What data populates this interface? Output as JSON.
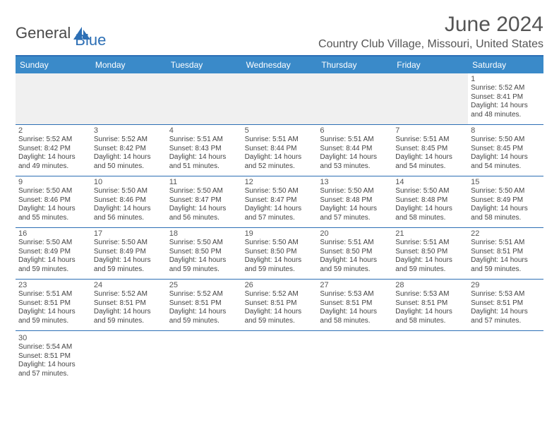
{
  "brand": {
    "general": "General",
    "blue": "Blue"
  },
  "title": "June 2024",
  "location": "Country Club Village, Missouri, United States",
  "colors": {
    "header_bar": "#3a8ac9",
    "rule": "#2d6fb5",
    "blank_bg": "#f0f0f0",
    "text": "#444444"
  },
  "weekdays": [
    "Sunday",
    "Monday",
    "Tuesday",
    "Wednesday",
    "Thursday",
    "Friday",
    "Saturday"
  ],
  "weeks": [
    [
      null,
      null,
      null,
      null,
      null,
      null,
      {
        "n": "1",
        "sr": "Sunrise: 5:52 AM",
        "ss": "Sunset: 8:41 PM",
        "d1": "Daylight: 14 hours",
        "d2": "and 48 minutes."
      }
    ],
    [
      {
        "n": "2",
        "sr": "Sunrise: 5:52 AM",
        "ss": "Sunset: 8:42 PM",
        "d1": "Daylight: 14 hours",
        "d2": "and 49 minutes."
      },
      {
        "n": "3",
        "sr": "Sunrise: 5:52 AM",
        "ss": "Sunset: 8:42 PM",
        "d1": "Daylight: 14 hours",
        "d2": "and 50 minutes."
      },
      {
        "n": "4",
        "sr": "Sunrise: 5:51 AM",
        "ss": "Sunset: 8:43 PM",
        "d1": "Daylight: 14 hours",
        "d2": "and 51 minutes."
      },
      {
        "n": "5",
        "sr": "Sunrise: 5:51 AM",
        "ss": "Sunset: 8:44 PM",
        "d1": "Daylight: 14 hours",
        "d2": "and 52 minutes."
      },
      {
        "n": "6",
        "sr": "Sunrise: 5:51 AM",
        "ss": "Sunset: 8:44 PM",
        "d1": "Daylight: 14 hours",
        "d2": "and 53 minutes."
      },
      {
        "n": "7",
        "sr": "Sunrise: 5:51 AM",
        "ss": "Sunset: 8:45 PM",
        "d1": "Daylight: 14 hours",
        "d2": "and 54 minutes."
      },
      {
        "n": "8",
        "sr": "Sunrise: 5:50 AM",
        "ss": "Sunset: 8:45 PM",
        "d1": "Daylight: 14 hours",
        "d2": "and 54 minutes."
      }
    ],
    [
      {
        "n": "9",
        "sr": "Sunrise: 5:50 AM",
        "ss": "Sunset: 8:46 PM",
        "d1": "Daylight: 14 hours",
        "d2": "and 55 minutes."
      },
      {
        "n": "10",
        "sr": "Sunrise: 5:50 AM",
        "ss": "Sunset: 8:46 PM",
        "d1": "Daylight: 14 hours",
        "d2": "and 56 minutes."
      },
      {
        "n": "11",
        "sr": "Sunrise: 5:50 AM",
        "ss": "Sunset: 8:47 PM",
        "d1": "Daylight: 14 hours",
        "d2": "and 56 minutes."
      },
      {
        "n": "12",
        "sr": "Sunrise: 5:50 AM",
        "ss": "Sunset: 8:47 PM",
        "d1": "Daylight: 14 hours",
        "d2": "and 57 minutes."
      },
      {
        "n": "13",
        "sr": "Sunrise: 5:50 AM",
        "ss": "Sunset: 8:48 PM",
        "d1": "Daylight: 14 hours",
        "d2": "and 57 minutes."
      },
      {
        "n": "14",
        "sr": "Sunrise: 5:50 AM",
        "ss": "Sunset: 8:48 PM",
        "d1": "Daylight: 14 hours",
        "d2": "and 58 minutes."
      },
      {
        "n": "15",
        "sr": "Sunrise: 5:50 AM",
        "ss": "Sunset: 8:49 PM",
        "d1": "Daylight: 14 hours",
        "d2": "and 58 minutes."
      }
    ],
    [
      {
        "n": "16",
        "sr": "Sunrise: 5:50 AM",
        "ss": "Sunset: 8:49 PM",
        "d1": "Daylight: 14 hours",
        "d2": "and 59 minutes."
      },
      {
        "n": "17",
        "sr": "Sunrise: 5:50 AM",
        "ss": "Sunset: 8:49 PM",
        "d1": "Daylight: 14 hours",
        "d2": "and 59 minutes."
      },
      {
        "n": "18",
        "sr": "Sunrise: 5:50 AM",
        "ss": "Sunset: 8:50 PM",
        "d1": "Daylight: 14 hours",
        "d2": "and 59 minutes."
      },
      {
        "n": "19",
        "sr": "Sunrise: 5:50 AM",
        "ss": "Sunset: 8:50 PM",
        "d1": "Daylight: 14 hours",
        "d2": "and 59 minutes."
      },
      {
        "n": "20",
        "sr": "Sunrise: 5:51 AM",
        "ss": "Sunset: 8:50 PM",
        "d1": "Daylight: 14 hours",
        "d2": "and 59 minutes."
      },
      {
        "n": "21",
        "sr": "Sunrise: 5:51 AM",
        "ss": "Sunset: 8:50 PM",
        "d1": "Daylight: 14 hours",
        "d2": "and 59 minutes."
      },
      {
        "n": "22",
        "sr": "Sunrise: 5:51 AM",
        "ss": "Sunset: 8:51 PM",
        "d1": "Daylight: 14 hours",
        "d2": "and 59 minutes."
      }
    ],
    [
      {
        "n": "23",
        "sr": "Sunrise: 5:51 AM",
        "ss": "Sunset: 8:51 PM",
        "d1": "Daylight: 14 hours",
        "d2": "and 59 minutes."
      },
      {
        "n": "24",
        "sr": "Sunrise: 5:52 AM",
        "ss": "Sunset: 8:51 PM",
        "d1": "Daylight: 14 hours",
        "d2": "and 59 minutes."
      },
      {
        "n": "25",
        "sr": "Sunrise: 5:52 AM",
        "ss": "Sunset: 8:51 PM",
        "d1": "Daylight: 14 hours",
        "d2": "and 59 minutes."
      },
      {
        "n": "26",
        "sr": "Sunrise: 5:52 AM",
        "ss": "Sunset: 8:51 PM",
        "d1": "Daylight: 14 hours",
        "d2": "and 59 minutes."
      },
      {
        "n": "27",
        "sr": "Sunrise: 5:53 AM",
        "ss": "Sunset: 8:51 PM",
        "d1": "Daylight: 14 hours",
        "d2": "and 58 minutes."
      },
      {
        "n": "28",
        "sr": "Sunrise: 5:53 AM",
        "ss": "Sunset: 8:51 PM",
        "d1": "Daylight: 14 hours",
        "d2": "and 58 minutes."
      },
      {
        "n": "29",
        "sr": "Sunrise: 5:53 AM",
        "ss": "Sunset: 8:51 PM",
        "d1": "Daylight: 14 hours",
        "d2": "and 57 minutes."
      }
    ],
    [
      {
        "n": "30",
        "sr": "Sunrise: 5:54 AM",
        "ss": "Sunset: 8:51 PM",
        "d1": "Daylight: 14 hours",
        "d2": "and 57 minutes."
      },
      null,
      null,
      null,
      null,
      null,
      null
    ]
  ]
}
